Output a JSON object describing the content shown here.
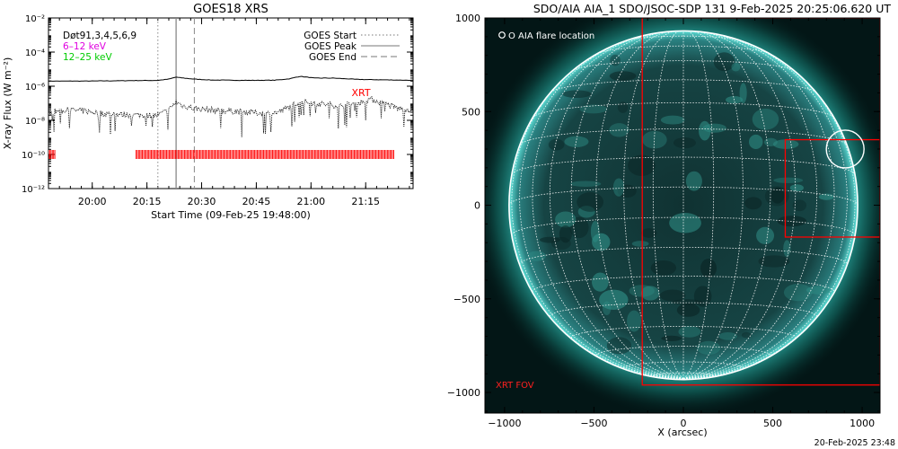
{
  "footer_timestamp": "20-Feb-2025 23:48",
  "chart_data": [
    {
      "type": "line",
      "title": "GOES18 XRS",
      "xlabel": "Start Time (09-Feb-25 19:48:00)",
      "ylabel": "X-ray Flux (W m⁻²)",
      "ylog": true,
      "ylim": [
        1e-12,
        0.01
      ],
      "xlim_minutes": [
        0,
        100
      ],
      "x_ticks": [
        {
          "minute": 12,
          "label": "20:00"
        },
        {
          "minute": 27,
          "label": "20:15"
        },
        {
          "minute": 42,
          "label": "20:30"
        },
        {
          "minute": 57,
          "label": "20:45"
        },
        {
          "minute": 72,
          "label": "21:00"
        },
        {
          "minute": 87,
          "label": "21:15"
        }
      ],
      "y_ticks": [
        {
          "value": 0.01,
          "label": "10⁻²"
        },
        {
          "value": 0.0001,
          "label": "10⁻⁴"
        },
        {
          "value": 1e-06,
          "label": "10⁻⁶"
        },
        {
          "value": 1e-08,
          "label": "10⁻⁸"
        },
        {
          "value": 1e-10,
          "label": "10⁻¹⁰"
        },
        {
          "value": 1e-12,
          "label": "10⁻¹²"
        }
      ],
      "legend_left": [
        {
          "text": "Døt91,3,4,5,6,9",
          "color": "#000000"
        },
        {
          "text": "6–12 keV",
          "color": "#e000e0"
        },
        {
          "text": "12–25 keV",
          "color": "#00cc00"
        }
      ],
      "legend_right": [
        {
          "text": "GOES Start",
          "style": "dotted"
        },
        {
          "text": "GOES Peak",
          "style": "solid"
        },
        {
          "text": "GOES End",
          "style": "dashed"
        }
      ],
      "event_lines_minutes": {
        "start": 30,
        "peak": 35,
        "end": 40
      },
      "xrt_label": "XRT",
      "series": [
        {
          "name": "long",
          "style": "solid",
          "x": [
            0,
            10,
            20,
            30,
            33,
            35,
            37,
            40,
            45,
            55,
            62,
            66,
            69,
            73,
            78,
            85,
            90,
            95,
            100
          ],
          "y": [
            2e-06,
            2e-06,
            2.1e-06,
            2.2e-06,
            2.6e-06,
            3.4e-06,
            3e-06,
            2.6e-06,
            2.3e-06,
            2.2e-06,
            2.25e-06,
            2.7e-06,
            3.8e-06,
            3e-06,
            3e-06,
            2.5e-06,
            2.4e-06,
            2.3e-06,
            2.2e-06
          ]
        },
        {
          "name": "short",
          "style": "dotted",
          "x": [
            0,
            5,
            10,
            15,
            20,
            25,
            30,
            33,
            35,
            37,
            40,
            45,
            50,
            55,
            60,
            63,
            66,
            69,
            72,
            75,
            80,
            85,
            88,
            92,
            96,
            100
          ],
          "y": [
            3e-08,
            4e-08,
            3.5e-08,
            2.5e-08,
            2.2e-08,
            2e-08,
            2e-08,
            4e-08,
            1.2e-07,
            7e-08,
            5e-08,
            4e-08,
            3.5e-08,
            3e-08,
            2.5e-08,
            3e-08,
            6e-08,
            1.3e-07,
            1.1e-07,
            9e-08,
            7e-08,
            1e-07,
            1.8e-07,
            1e-07,
            5e-08,
            4e-08
          ]
        }
      ],
      "xrt_coverage_minutes": [
        [
          0,
          2
        ],
        [
          24,
          95
        ]
      ]
    },
    {
      "type": "heatmap",
      "title": "SDO/AIA AIA_1 SDO/JSOC-SDP 131  9-Feb-2025 20:25:06.620 UT",
      "xlabel": "X (arcsec)",
      "ylabel": "",
      "xlim": [
        -1110,
        1100
      ],
      "ylim": [
        -1110,
        1000
      ],
      "x_ticks": [
        -1000,
        -500,
        0,
        500,
        1000
      ],
      "y_ticks": [
        1000,
        500,
        0,
        -500,
        -1000
      ],
      "legend_text": "O AIA flare location",
      "fov_label": "XRT FOV",
      "solar_radius_arcsec": 975,
      "flare_location": [
        905,
        300
      ],
      "xrt_fov_box": {
        "x": [
          -230,
          1100
        ],
        "y": [
          -960,
          1000
        ]
      },
      "inner_box": {
        "x": [
          570,
          1100
        ],
        "y": [
          -170,
          350
        ]
      }
    }
  ]
}
